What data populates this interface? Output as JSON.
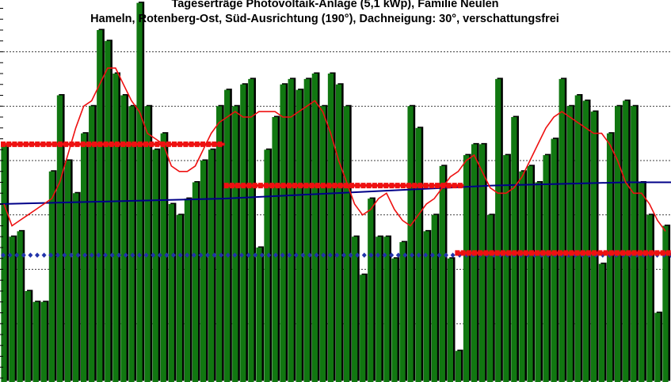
{
  "chart_data": {
    "type": "bar",
    "title": "Tageserträge Photovoltaik-Anlage (5,1 kWp),  Familie Neulen",
    "subtitle": "Hameln, Rotenberg-Ost, Süd-Ausrichtung (190°), Dachneigung: 30°, verschattungsfrei",
    "xlabel": "",
    "ylabel": "",
    "ylim": [
      0,
      35
    ],
    "grid": true,
    "colors": {
      "bars": "#117711",
      "bar_shadow": "#000000",
      "moving_average": "#ee1111",
      "monthly_average": "#ee1111",
      "long_term_average": "#000088",
      "reference": "#2233aa",
      "grid": "#000000"
    },
    "series": [
      {
        "type": "bar",
        "values": [
          21.5,
          13.0,
          13.5,
          8.0,
          7.0,
          7.0,
          19.0,
          26.0,
          20.0,
          17.0,
          22.5,
          25.0,
          32.0,
          31.0,
          28.0,
          26.0,
          25.0,
          34.5,
          25.0,
          21.0,
          22.5,
          16.0,
          15.0,
          16.5,
          18.0,
          20.0,
          21.0,
          25.0,
          26.5,
          25.0,
          27.0,
          27.5,
          12.0,
          21.0,
          24.0,
          27.0,
          27.5,
          26.5,
          27.5,
          28.0,
          25.0,
          28.0,
          27.0,
          25.0,
          13.0,
          9.5,
          16.5,
          13.0,
          13.0,
          11.0,
          12.5,
          25.0,
          23.0,
          13.5,
          15.0,
          19.5,
          11.0,
          2.5,
          20.5,
          21.5,
          21.5,
          15.0,
          27.5,
          20.5,
          24.0,
          19.0,
          19.5,
          18.0,
          20.5,
          22.0,
          27.5,
          25.0,
          26.0,
          25.5,
          24.5,
          10.5,
          22.5,
          25.0,
          25.5,
          25.0,
          18.0,
          15.0,
          6.0,
          14.0
        ]
      },
      {
        "name": "",
        "type": "line",
        "values": [
          16.0,
          14.0,
          14.5,
          15.0,
          15.5,
          16.0,
          16.5,
          18.0,
          20.5,
          23.0,
          25.0,
          25.5,
          27.0,
          28.5,
          28.5,
          27.0,
          25.5,
          24.5,
          22.5,
          22.0,
          21.5,
          19.5,
          19.0,
          19.0,
          19.5,
          21.0,
          22.5,
          23.5,
          24.0,
          24.5,
          24.0,
          24.0,
          24.5,
          24.5,
          24.5,
          24.0,
          24.0,
          24.5,
          25.0,
          25.5,
          24.5,
          22.5,
          20.0,
          18.0,
          16.0,
          15.0,
          15.5,
          16.5,
          17.0,
          15.5,
          14.5,
          14.0,
          15.0,
          16.0,
          16.5,
          17.5,
          18.5,
          19.0,
          20.0,
          20.5,
          19.0,
          17.5,
          17.0,
          17.0,
          17.5,
          18.5,
          20.0,
          21.5,
          23.0,
          24.0,
          24.5,
          24.0,
          23.5,
          23.0,
          22.5,
          22.5,
          21.5,
          20.0,
          18.0,
          17.0,
          17.0,
          16.0,
          14.5,
          13.5
        ]
      },
      {
        "name": "",
        "type": "monthly_average",
        "segments": [
          {
            "start": 0,
            "end": 28,
            "value": 21.5
          },
          {
            "start": 28,
            "end": 58,
            "value": 17.7
          },
          {
            "start": 57,
            "end": 84,
            "value": 11.5
          }
        ]
      },
      {
        "name": "",
        "type": "line",
        "values": [
          16.0,
          16.1,
          16.2,
          16.3,
          16.4,
          16.5,
          16.7,
          16.9,
          17.1,
          17.3,
          17.5,
          17.7,
          17.8,
          17.9,
          18.0,
          18.0
        ]
      },
      {
        "name": "",
        "type": "reference",
        "value": 11.3
      }
    ]
  }
}
